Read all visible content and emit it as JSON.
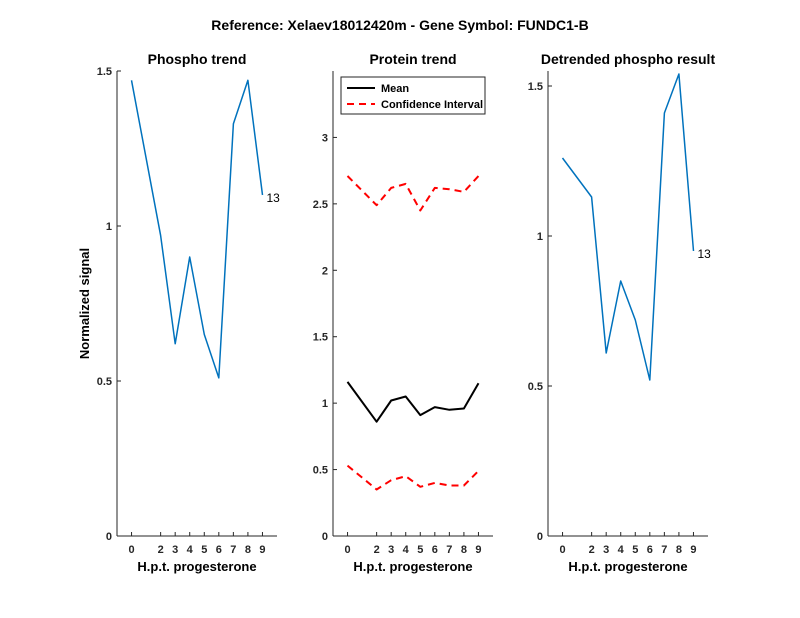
{
  "figure_title": "Reference:  Xelaev18012420m - Gene Symbol:  FUNDC1-B",
  "colors": {
    "series": "#0072BD",
    "mean": "#000000",
    "ci": "#FF0000",
    "axis": "#262626"
  },
  "chart_data": [
    {
      "type": "line",
      "title": "Phospho trend",
      "xlabel": "H.p.t. progesterone",
      "ylabel": "Normalized signal",
      "x": [
        "0",
        "2",
        "3",
        "4",
        "5",
        "6",
        "7",
        "8",
        "9"
      ],
      "xlim": [
        -1,
        10
      ],
      "ylim": [
        0,
        1.5
      ],
      "yticks": [
        "0",
        "0.5",
        "1",
        "1.5"
      ],
      "series": [
        {
          "values": [
            1.47,
            0.97,
            0.62,
            0.9,
            0.65,
            0.51,
            1.33,
            1.47,
            1.1
          ]
        }
      ],
      "end_label": "13"
    },
    {
      "type": "line",
      "title": "Protein trend",
      "xlabel": "H.p.t. progesterone",
      "ylabel": "",
      "x": [
        "0",
        "2",
        "3",
        "4",
        "5",
        "6",
        "7",
        "8",
        "9"
      ],
      "xlim": [
        -1,
        10
      ],
      "ylim": [
        0,
        3.5
      ],
      "yticks": [
        "0",
        "0.5",
        "1",
        "1.5",
        "2",
        "2.5",
        "3"
      ],
      "legend": {
        "placement": "top-left",
        "entries": [
          "Mean",
          "Confidence Interval"
        ]
      },
      "series": [
        {
          "name": "Mean",
          "style": "solid",
          "values": [
            1.16,
            0.86,
            1.02,
            1.05,
            0.91,
            0.97,
            0.95,
            0.96,
            1.15
          ]
        },
        {
          "name": "Confidence Interval",
          "style": "dashed",
          "values": [
            2.71,
            2.49,
            2.62,
            2.65,
            2.45,
            2.62,
            2.61,
            2.59,
            2.71
          ]
        },
        {
          "name": "Confidence Interval",
          "style": "dashed",
          "values": [
            0.53,
            0.35,
            0.42,
            0.45,
            0.37,
            0.4,
            0.38,
            0.38,
            0.49
          ]
        }
      ]
    },
    {
      "type": "line",
      "title": "Detrended phospho result",
      "xlabel": "H.p.t. progesterone",
      "ylabel": "",
      "x": [
        "0",
        "2",
        "3",
        "4",
        "5",
        "6",
        "7",
        "8",
        "9"
      ],
      "xlim": [
        -1,
        10
      ],
      "ylim": [
        0,
        1.55
      ],
      "yticks": [
        "0",
        "0.5",
        "1",
        "1.5"
      ],
      "series": [
        {
          "values": [
            1.26,
            1.13,
            0.61,
            0.85,
            0.72,
            0.52,
            1.41,
            1.54,
            0.95
          ]
        }
      ],
      "end_label": "13"
    }
  ]
}
